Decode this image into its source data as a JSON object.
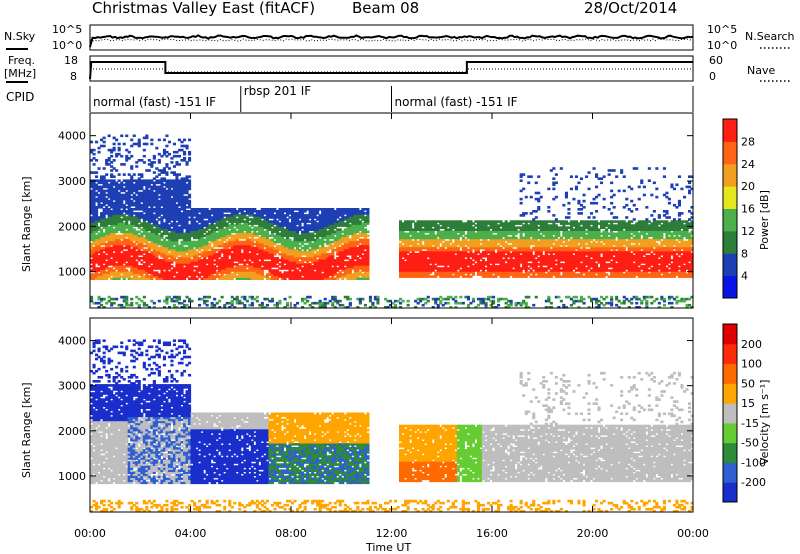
{
  "header": {
    "station": "Christmas Valley East (fitACF)",
    "beam": "Beam 08",
    "date": "28/Oct/2014"
  },
  "noise_panel": {
    "left_label": "N.Sky",
    "right_label": "N.Search",
    "left_ticks": [
      "10^5",
      "10^0"
    ],
    "right_ticks": [
      "10^5",
      "10^0"
    ]
  },
  "freq_panel": {
    "left_label_1": "Freq.",
    "left_label_2": "[MHz]",
    "right_label": "Nave",
    "left_ticks": [
      "18",
      "8"
    ],
    "right_ticks": [
      "60",
      "0"
    ]
  },
  "cpid_panel": {
    "label": "CPID",
    "segments": [
      {
        "start_hour": 0,
        "end_hour": 6,
        "text": "normal (fast) -151 IF"
      },
      {
        "start_hour": 6,
        "end_hour": 12,
        "text": "rbsp 201 IF"
      },
      {
        "start_hour": 12,
        "end_hour": 24,
        "text": "normal (fast) -151 IF"
      }
    ]
  },
  "chart_data": [
    {
      "type": "heatmap",
      "name": "power",
      "ylabel": "Slant Range [km]",
      "ylim": [
        200,
        4500
      ],
      "xlim_hours": [
        0,
        24
      ],
      "y_ticks": [
        1000,
        2000,
        3000,
        4000
      ],
      "colorbar": {
        "label": "Power [dB]",
        "ticks": [
          "4",
          "8",
          "12",
          "16",
          "20",
          "24",
          "28"
        ],
        "colors": [
          "#0a14e6",
          "#1e3fb4",
          "#2e7d3a",
          "#4bb04b",
          "#e6e61e",
          "#f0a01e",
          "#ff6414",
          "#ff1e14"
        ]
      }
    },
    {
      "type": "heatmap",
      "name": "velocity",
      "ylabel": "Slant Range [km]",
      "ylim": [
        200,
        4500
      ],
      "xlim_hours": [
        0,
        24
      ],
      "y_ticks": [
        1000,
        2000,
        3000,
        4000
      ],
      "colorbar": {
        "label": "Velocity [m s⁻¹]",
        "ticks": [
          "200",
          "100",
          "50",
          "15",
          "-15",
          "-50",
          "-100",
          "-200"
        ],
        "colors": [
          "#1a2ecc",
          "#2f5fd0",
          "#2e8b3a",
          "#66cc33",
          "#bebebe",
          "#ffa500",
          "#ff6a00",
          "#ff2a0a",
          "#e00000"
        ]
      }
    }
  ],
  "x_axis": {
    "label": "Time UT",
    "ticks": [
      "00:00",
      "04:00",
      "08:00",
      "12:00",
      "16:00",
      "20:00",
      "00:00"
    ]
  }
}
